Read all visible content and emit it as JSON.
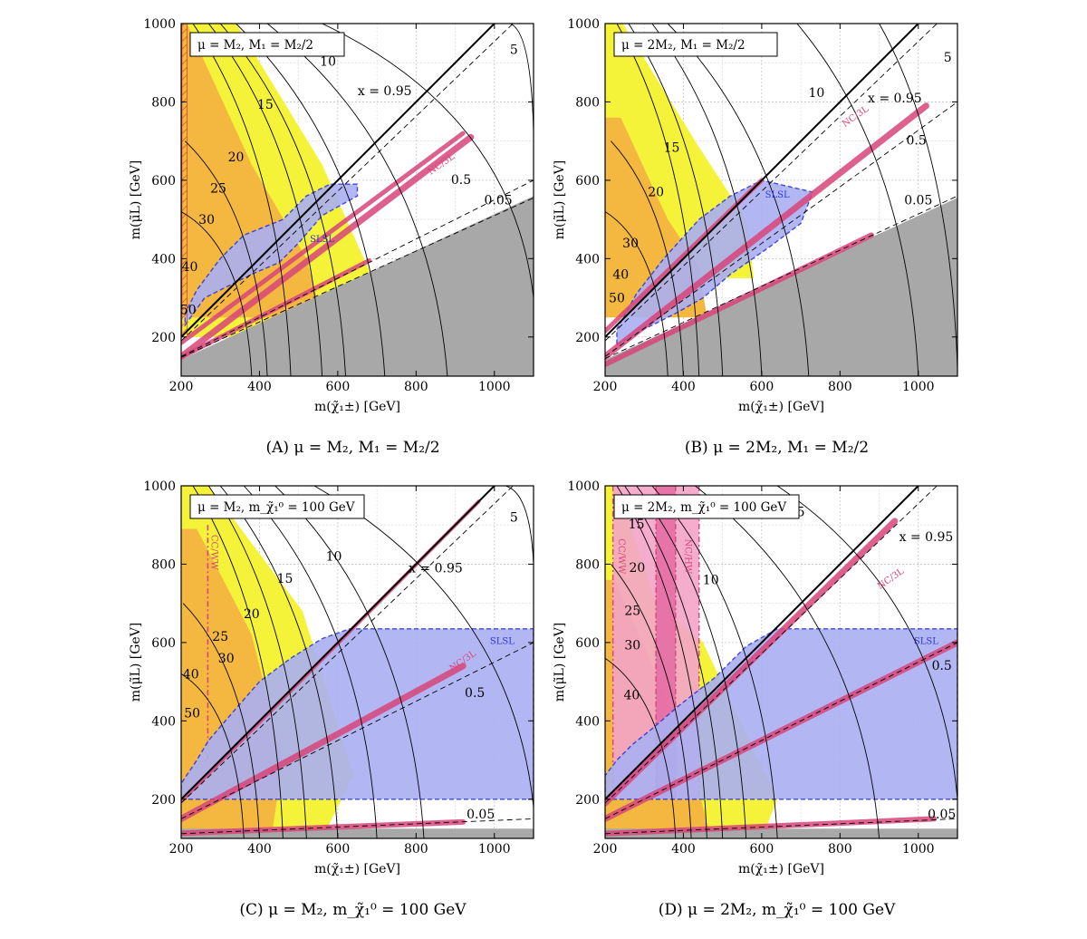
{
  "chart_data": [
    {
      "id": "A",
      "type": "contour",
      "caption": "(A) μ = M₂, M₁ = M₂/2",
      "legend": "μ = M₂,  M₁ = M₂/2",
      "xlabel": "m(χ̃₁±) [GeV]",
      "ylabel": "m(μ̃L) [GeV]",
      "xlim": [
        200,
        1100
      ],
      "ylim": [
        100,
        1000
      ],
      "xticks": [
        200,
        400,
        600,
        800,
        1000
      ],
      "yticks": [
        200,
        400,
        600,
        800,
        1000
      ],
      "grid": true,
      "contour_labels": [
        {
          "text": "5",
          "x": 1050,
          "y": 932
        },
        {
          "text": "10",
          "x": 575,
          "y": 902
        },
        {
          "text": "15",
          "x": 415,
          "y": 792
        },
        {
          "text": "20",
          "x": 340,
          "y": 658
        },
        {
          "text": "25",
          "x": 295,
          "y": 578
        },
        {
          "text": "30",
          "x": 265,
          "y": 498
        },
        {
          "text": "40",
          "x": 222,
          "y": 378
        },
        {
          "text": "50",
          "x": 218,
          "y": 268
        }
      ],
      "x_lines": [
        {
          "text": "x = 0.95",
          "x": 720,
          "y": 826
        },
        {
          "text": "0.5",
          "x": 915,
          "y": 600
        },
        {
          "text": "0.05",
          "x": 1010,
          "y": 548
        }
      ],
      "search_labels": [
        {
          "text": "SLSL",
          "x": 560,
          "y": 448
        },
        {
          "text": "NC/3L",
          "x": 865,
          "y": 640
        }
      ]
    },
    {
      "id": "B",
      "type": "contour",
      "caption": "(B) μ = 2M₂, M₁ = M₂/2",
      "legend": "μ = 2M₂,  M₁ = M₂/2",
      "xlabel": "m(χ̃₁±) [GeV]",
      "ylabel": "m(μ̃L) [GeV]",
      "xlim": [
        200,
        1100
      ],
      "ylim": [
        100,
        1000
      ],
      "xticks": [
        200,
        400,
        600,
        800,
        1000
      ],
      "yticks": [
        200,
        400,
        600,
        800,
        1000
      ],
      "grid": true,
      "contour_labels": [
        {
          "text": "5",
          "x": 1075,
          "y": 912
        },
        {
          "text": "10",
          "x": 740,
          "y": 822
        },
        {
          "text": "15",
          "x": 370,
          "y": 682
        },
        {
          "text": "20",
          "x": 330,
          "y": 568
        },
        {
          "text": "30",
          "x": 265,
          "y": 438
        },
        {
          "text": "40",
          "x": 240,
          "y": 358
        },
        {
          "text": "50",
          "x": 230,
          "y": 298
        }
      ],
      "x_lines": [
        {
          "text": "x = 0.95",
          "x": 940,
          "y": 808
        },
        {
          "text": "0.5",
          "x": 995,
          "y": 700
        },
        {
          "text": "0.05",
          "x": 1000,
          "y": 548
        }
      ],
      "search_labels": [
        {
          "text": "SLSL",
          "x": 640,
          "y": 562
        },
        {
          "text": "NC/3L",
          "x": 840,
          "y": 762
        }
      ]
    },
    {
      "id": "C",
      "type": "contour",
      "caption": "(C) μ = M₂, m_χ̃₁⁰ = 100 GeV",
      "legend": "μ = M₂,  m_χ̃₁⁰ = 100 GeV",
      "xlabel": "m(χ̃₁±) [GeV]",
      "ylabel": "m(μ̃L) [GeV]",
      "xlim": [
        200,
        1100
      ],
      "ylim": [
        100,
        1000
      ],
      "xticks": [
        200,
        400,
        600,
        800,
        1000
      ],
      "yticks": [
        200,
        400,
        600,
        800,
        1000
      ],
      "grid": true,
      "contour_labels": [
        {
          "text": "5",
          "x": 1050,
          "y": 918
        },
        {
          "text": "10",
          "x": 590,
          "y": 818
        },
        {
          "text": "15",
          "x": 465,
          "y": 762
        },
        {
          "text": "20",
          "x": 380,
          "y": 672
        },
        {
          "text": "25",
          "x": 300,
          "y": 614
        },
        {
          "text": "30",
          "x": 315,
          "y": 558
        },
        {
          "text": "40",
          "x": 225,
          "y": 518
        },
        {
          "text": "50",
          "x": 228,
          "y": 418
        }
      ],
      "x_lines": [
        {
          "text": "x = 0.95",
          "x": 850,
          "y": 788
        },
        {
          "text": "0.5",
          "x": 950,
          "y": 470
        },
        {
          "text": "0.05",
          "x": 965,
          "y": 160
        }
      ],
      "search_labels": [
        {
          "text": "SLSL",
          "x": 1020,
          "y": 602
        },
        {
          "text": "NC/3L",
          "x": 920,
          "y": 552
        },
        {
          "text": "CC/WW",
          "x": 283,
          "y": 830
        }
      ]
    },
    {
      "id": "D",
      "type": "contour",
      "caption": "(D) μ = 2M₂, m_χ̃₁⁰ = 100 GeV",
      "legend": "μ = 2M₂,  m_χ̃₁⁰ = 100 GeV",
      "xlabel": "m(χ̃₁±) [GeV]",
      "ylabel": "m(μ̃L) [GeV]",
      "xlim": [
        200,
        1100
      ],
      "ylim": [
        100,
        1000
      ],
      "xticks": [
        200,
        400,
        600,
        800,
        1000
      ],
      "yticks": [
        200,
        400,
        600,
        800,
        1000
      ],
      "grid": true,
      "contour_labels": [
        {
          "text": "5",
          "x": 700,
          "y": 932
        },
        {
          "text": "10",
          "x": 470,
          "y": 758
        },
        {
          "text": "15",
          "x": 280,
          "y": 900
        },
        {
          "text": "20",
          "x": 282,
          "y": 790
        },
        {
          "text": "25",
          "x": 270,
          "y": 680
        },
        {
          "text": "30",
          "x": 270,
          "y": 592
        },
        {
          "text": "40",
          "x": 268,
          "y": 464
        }
      ],
      "x_lines": [
        {
          "text": "x = 0.95",
          "x": 1020,
          "y": 868
        },
        {
          "text": "0.5",
          "x": 1060,
          "y": 540
        },
        {
          "text": "0.05",
          "x": 1060,
          "y": 160
        }
      ],
      "search_labels": [
        {
          "text": "SLSL",
          "x": 1020,
          "y": 602
        },
        {
          "text": "NC/3L",
          "x": 930,
          "y": 762
        },
        {
          "text": "CC/WW",
          "x": 240,
          "y": 820
        },
        {
          "text": "NC/HW",
          "x": 410,
          "y": 820
        }
      ]
    }
  ]
}
